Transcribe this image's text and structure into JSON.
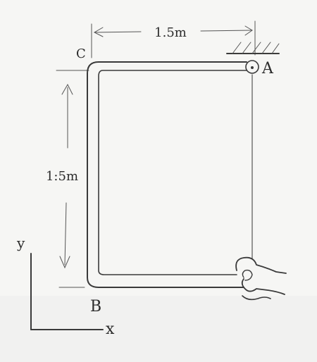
{
  "labels": {
    "top_dimension": "1.5m",
    "left_dimension": "1:5m",
    "point_a": "A",
    "point_b": "B",
    "point_c": "C",
    "axis_x": "x",
    "axis_y": "y"
  },
  "colors": {
    "paper": "#f6f6f4",
    "ink": "#2b2b2b"
  }
}
